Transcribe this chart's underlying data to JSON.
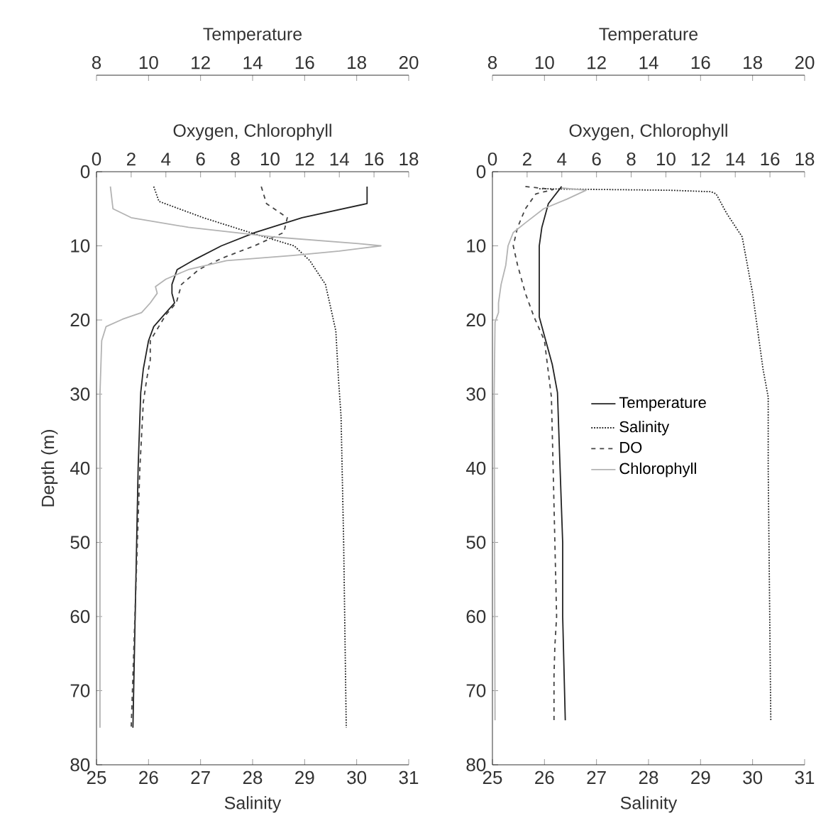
{
  "chart_data": [
    {
      "type": "line",
      "xlabel": "Temperature",
      "xlim": [
        8,
        20
      ],
      "xticks": [
        8,
        10,
        12,
        14,
        16,
        18,
        20
      ],
      "ylim": [
        80,
        0
      ],
      "tick_labels": "x",
      "series": [
        {
          "color": "#222222",
          "line_style": "solid",
          "x": [
            18.4,
            18.4,
            15.9,
            14.1,
            12.8,
            11.8,
            11.1,
            10.9,
            10.9,
            11.0,
            10.6,
            10.2,
            10.0,
            9.8,
            9.7,
            9.6,
            9.4
          ],
          "values": [
            2,
            4.3,
            6.2,
            8.2,
            10,
            11.8,
            13.2,
            15.2,
            16.4,
            17.7,
            19.3,
            20.9,
            22.8,
            26.6,
            29.8,
            40,
            75
          ]
        }
      ]
    },
    {
      "type": "line",
      "xlabel": "Salinity",
      "x2label": "Oxygen, Chlorophyll",
      "ylabel": "Depth (m)",
      "xlim": [
        25,
        31
      ],
      "xticks": [
        25,
        26,
        27,
        28,
        29,
        30,
        31
      ],
      "x2lim": [
        0,
        18
      ],
      "x2ticks": [
        0,
        2,
        4,
        6,
        8,
        10,
        12,
        14,
        16,
        18
      ],
      "ylim": [
        80,
        0
      ],
      "yticks": [
        0,
        10,
        20,
        30,
        40,
        50,
        60,
        70,
        80
      ],
      "series": [
        {
          "color": "#222222",
          "line_style": "dotted",
          "x": [
            26.1,
            26.2,
            27.05,
            27.95,
            28.8,
            29.1,
            29.4,
            29.5,
            29.6,
            29.65,
            29.7,
            29.75,
            29.8
          ],
          "values": [
            2,
            4,
            6.2,
            8.2,
            10,
            12,
            15.2,
            18.3,
            21.5,
            27.9,
            33,
            50,
            75
          ]
        },
        {
          "axis": "x2",
          "color": "#444444",
          "line_style": "dashed",
          "x": [
            9.5,
            9.8,
            11.0,
            10.8,
            9.1,
            7.2,
            5.9,
            4.9,
            4.6,
            4.0,
            3.1,
            3.1,
            2.9,
            2.7,
            2.5,
            2.0
          ],
          "values": [
            2,
            4.3,
            6.2,
            8.2,
            10,
            11.7,
            13.2,
            15.2,
            17.7,
            19.3,
            22.8,
            25.4,
            27.9,
            31.1,
            40,
            75
          ]
        },
        {
          "axis": "x2",
          "color": "#b3b3b3",
          "line_style": "solid",
          "x": [
            0.8,
            0.95,
            2.0,
            5.3,
            10.2,
            15.1,
            16.4,
            14.0,
            11.3,
            7.5,
            5.3,
            4.0,
            3.4,
            3.5,
            3.1,
            2.6,
            1.5,
            0.55,
            0.3,
            0.2,
            0.2
          ],
          "values": [
            2,
            5,
            6.2,
            7.5,
            8.8,
            9.7,
            10,
            10.7,
            11.3,
            12,
            13.2,
            14.5,
            15.5,
            16.4,
            17.7,
            19,
            19.9,
            20.9,
            22.8,
            30,
            75
          ]
        }
      ]
    },
    {
      "type": "line",
      "xlabel": "Temperature",
      "xlim": [
        8,
        20
      ],
      "xticks": [
        8,
        10,
        12,
        14,
        16,
        18,
        20
      ],
      "ylim": [
        80,
        0
      ],
      "tick_labels": "x",
      "legend": "right",
      "series": [
        {
          "name": "Temperature",
          "color": "#222222",
          "line_style": "solid",
          "x": [
            10.66,
            10.15,
            9.9,
            9.8,
            9.8,
            10.05,
            10.3,
            10.5,
            10.6,
            10.7,
            10.7,
            10.8
          ],
          "values": [
            2,
            4.3,
            7.5,
            10,
            19.6,
            22.8,
            26,
            29.8,
            40,
            50,
            60,
            74
          ]
        }
      ]
    },
    {
      "type": "line",
      "xlabel": "Salinity",
      "x2label": "Oxygen, Chlorophyll",
      "legend": "right",
      "xlim": [
        25,
        31
      ],
      "xticks": [
        25,
        26,
        27,
        28,
        29,
        30,
        31
      ],
      "x2lim": [
        0,
        18
      ],
      "x2ticks": [
        0,
        2,
        4,
        6,
        8,
        10,
        12,
        14,
        16,
        18
      ],
      "ylim": [
        80,
        0
      ],
      "yticks": [
        0,
        10,
        20,
        30,
        40,
        50,
        60,
        70,
        80
      ],
      "series": [
        {
          "name": "Salinity",
          "color": "#222222",
          "line_style": "dotted",
          "x": [
            25.9,
            27.1,
            28.4,
            29.2,
            29.3,
            29.5,
            29.8,
            29.9,
            30.0,
            30.1,
            30.2,
            30.3,
            30.3,
            30.35
          ],
          "values": [
            2.3,
            2.4,
            2.5,
            2.7,
            3,
            5.6,
            8.8,
            12.6,
            16.4,
            21.5,
            26.6,
            30.4,
            40,
            74
          ]
        },
        {
          "name": "DO",
          "axis": "x2",
          "color": "#444444",
          "line_style": "dashed",
          "x": [
            1.9,
            3.5,
            2.5,
            1.9,
            1.45,
            1.2,
            1.45,
            1.9,
            2.4,
            3.0,
            3.2,
            3.4,
            3.5,
            3.7,
            3.6,
            3.55,
            3.55
          ],
          "values": [
            2,
            2.4,
            3,
            5,
            7.5,
            10,
            12.6,
            16.4,
            19.6,
            22.8,
            26.6,
            30.4,
            40,
            60,
            64,
            68,
            74
          ]
        },
        {
          "name": "Chlorophyll",
          "axis": "x2",
          "color": "#b3b3b3",
          "line_style": "solid",
          "x": [
            4.0,
            5.4,
            4.3,
            2.95,
            1.9,
            1.2,
            0.9,
            0.77,
            0.5,
            0.35,
            0.35,
            0.15,
            0.1,
            0.15
          ],
          "values": [
            2.2,
            2.5,
            3.7,
            5,
            6.9,
            8.2,
            10,
            12.6,
            15.2,
            17.7,
            19,
            20.3,
            30,
            74
          ]
        }
      ]
    }
  ]
}
